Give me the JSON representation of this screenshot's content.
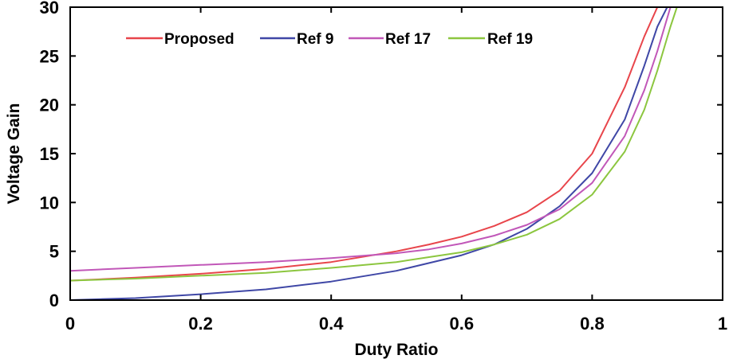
{
  "chart_data": {
    "type": "line",
    "xlabel": "Duty Ratio",
    "ylabel": "Voltage Gain",
    "xlim": [
      0,
      1
    ],
    "ylim": [
      0,
      30
    ],
    "xticks": [
      "0",
      "0.2",
      "0.4",
      "0.6",
      "0.8",
      "1"
    ],
    "yticks": [
      "0",
      "5",
      "10",
      "15",
      "20",
      "25",
      "30"
    ],
    "grid": false,
    "legend_position": "top",
    "series": [
      {
        "name": "Proposed",
        "color": "#e8454b",
        "x": [
          0,
          0.1,
          0.2,
          0.3,
          0.4,
          0.5,
          0.55,
          0.6,
          0.65,
          0.7,
          0.75,
          0.8,
          0.85,
          0.88,
          0.9,
          0.91
        ],
        "y": [
          2.0,
          2.3,
          2.7,
          3.2,
          3.9,
          5.0,
          5.7,
          6.5,
          7.6,
          9.0,
          11.2,
          15.0,
          21.8,
          27.0,
          30.0,
          30.0
        ]
      },
      {
        "name": "Ref 9",
        "color": "#3f47a6",
        "x": [
          0,
          0.1,
          0.2,
          0.3,
          0.4,
          0.5,
          0.6,
          0.65,
          0.7,
          0.75,
          0.8,
          0.85,
          0.88,
          0.9,
          0.915
        ],
        "y": [
          0.0,
          0.2,
          0.6,
          1.1,
          1.9,
          3.0,
          4.6,
          5.7,
          7.3,
          9.6,
          13.0,
          18.5,
          24.0,
          28.0,
          30.0
        ]
      },
      {
        "name": "Ref 17",
        "color": "#c157b8",
        "x": [
          0,
          0.1,
          0.2,
          0.3,
          0.4,
          0.5,
          0.55,
          0.6,
          0.65,
          0.7,
          0.75,
          0.8,
          0.85,
          0.88,
          0.9,
          0.92
        ],
        "y": [
          3.0,
          3.3,
          3.6,
          3.9,
          4.3,
          4.8,
          5.2,
          5.8,
          6.6,
          7.7,
          9.3,
          12.0,
          16.8,
          21.5,
          25.5,
          30.0
        ]
      },
      {
        "name": "Ref 19",
        "color": "#8cc63f",
        "x": [
          0,
          0.1,
          0.2,
          0.3,
          0.4,
          0.5,
          0.55,
          0.6,
          0.65,
          0.7,
          0.75,
          0.8,
          0.85,
          0.88,
          0.9,
          0.92,
          0.93
        ],
        "y": [
          2.0,
          2.2,
          2.5,
          2.8,
          3.3,
          3.9,
          4.4,
          4.9,
          5.7,
          6.7,
          8.3,
          10.8,
          15.2,
          19.5,
          23.5,
          28.0,
          30.0
        ]
      }
    ]
  }
}
